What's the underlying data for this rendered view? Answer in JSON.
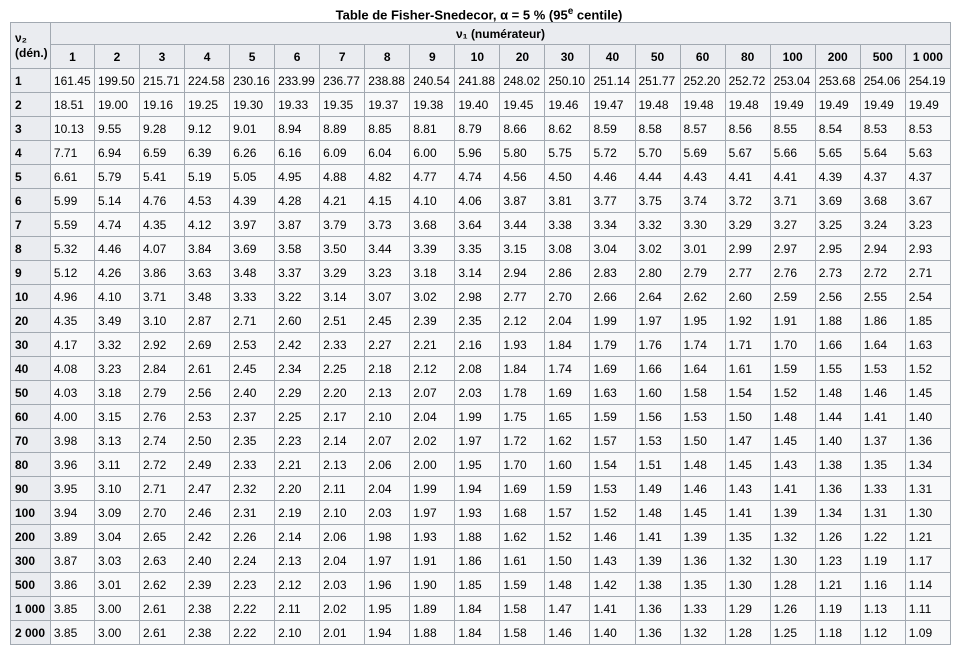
{
  "caption": {
    "prefix": "Table de Fisher-Snedecor, α = 5 % (95",
    "sup": "e",
    "suffix": " centile)"
  },
  "corner": {
    "line1": "ν₂",
    "line2": "(dén.)"
  },
  "numerator_header": "ν₁ (numérateur)",
  "columns": [
    "1",
    "2",
    "3",
    "4",
    "5",
    "6",
    "7",
    "8",
    "9",
    "10",
    "20",
    "30",
    "40",
    "50",
    "60",
    "80",
    "100",
    "200",
    "500",
    "1 000"
  ],
  "rows": [
    {
      "label": "1",
      "values": [
        "161.45",
        "199.50",
        "215.71",
        "224.58",
        "230.16",
        "233.99",
        "236.77",
        "238.88",
        "240.54",
        "241.88",
        "248.02",
        "250.10",
        "251.14",
        "251.77",
        "252.20",
        "252.72",
        "253.04",
        "253.68",
        "254.06",
        "254.19"
      ]
    },
    {
      "label": "2",
      "values": [
        "18.51",
        "19.00",
        "19.16",
        "19.25",
        "19.30",
        "19.33",
        "19.35",
        "19.37",
        "19.38",
        "19.40",
        "19.45",
        "19.46",
        "19.47",
        "19.48",
        "19.48",
        "19.48",
        "19.49",
        "19.49",
        "19.49",
        "19.49"
      ]
    },
    {
      "label": "3",
      "values": [
        "10.13",
        "9.55",
        "9.28",
        "9.12",
        "9.01",
        "8.94",
        "8.89",
        "8.85",
        "8.81",
        "8.79",
        "8.66",
        "8.62",
        "8.59",
        "8.58",
        "8.57",
        "8.56",
        "8.55",
        "8.54",
        "8.53",
        "8.53"
      ]
    },
    {
      "label": "4",
      "values": [
        "7.71",
        "6.94",
        "6.59",
        "6.39",
        "6.26",
        "6.16",
        "6.09",
        "6.04",
        "6.00",
        "5.96",
        "5.80",
        "5.75",
        "5.72",
        "5.70",
        "5.69",
        "5.67",
        "5.66",
        "5.65",
        "5.64",
        "5.63"
      ]
    },
    {
      "label": "5",
      "values": [
        "6.61",
        "5.79",
        "5.41",
        "5.19",
        "5.05",
        "4.95",
        "4.88",
        "4.82",
        "4.77",
        "4.74",
        "4.56",
        "4.50",
        "4.46",
        "4.44",
        "4.43",
        "4.41",
        "4.41",
        "4.39",
        "4.37",
        "4.37"
      ]
    },
    {
      "label": "6",
      "values": [
        "5.99",
        "5.14",
        "4.76",
        "4.53",
        "4.39",
        "4.28",
        "4.21",
        "4.15",
        "4.10",
        "4.06",
        "3.87",
        "3.81",
        "3.77",
        "3.75",
        "3.74",
        "3.72",
        "3.71",
        "3.69",
        "3.68",
        "3.67"
      ]
    },
    {
      "label": "7",
      "values": [
        "5.59",
        "4.74",
        "4.35",
        "4.12",
        "3.97",
        "3.87",
        "3.79",
        "3.73",
        "3.68",
        "3.64",
        "3.44",
        "3.38",
        "3.34",
        "3.32",
        "3.30",
        "3.29",
        "3.27",
        "3.25",
        "3.24",
        "3.23"
      ]
    },
    {
      "label": "8",
      "values": [
        "5.32",
        "4.46",
        "4.07",
        "3.84",
        "3.69",
        "3.58",
        "3.50",
        "3.44",
        "3.39",
        "3.35",
        "3.15",
        "3.08",
        "3.04",
        "3.02",
        "3.01",
        "2.99",
        "2.97",
        "2.95",
        "2.94",
        "2.93"
      ]
    },
    {
      "label": "9",
      "values": [
        "5.12",
        "4.26",
        "3.86",
        "3.63",
        "3.48",
        "3.37",
        "3.29",
        "3.23",
        "3.18",
        "3.14",
        "2.94",
        "2.86",
        "2.83",
        "2.80",
        "2.79",
        "2.77",
        "2.76",
        "2.73",
        "2.72",
        "2.71"
      ]
    },
    {
      "label": "10",
      "values": [
        "4.96",
        "4.10",
        "3.71",
        "3.48",
        "3.33",
        "3.22",
        "3.14",
        "3.07",
        "3.02",
        "2.98",
        "2.77",
        "2.70",
        "2.66",
        "2.64",
        "2.62",
        "2.60",
        "2.59",
        "2.56",
        "2.55",
        "2.54"
      ]
    },
    {
      "label": "20",
      "values": [
        "4.35",
        "3.49",
        "3.10",
        "2.87",
        "2.71",
        "2.60",
        "2.51",
        "2.45",
        "2.39",
        "2.35",
        "2.12",
        "2.04",
        "1.99",
        "1.97",
        "1.95",
        "1.92",
        "1.91",
        "1.88",
        "1.86",
        "1.85"
      ]
    },
    {
      "label": "30",
      "values": [
        "4.17",
        "3.32",
        "2.92",
        "2.69",
        "2.53",
        "2.42",
        "2.33",
        "2.27",
        "2.21",
        "2.16",
        "1.93",
        "1.84",
        "1.79",
        "1.76",
        "1.74",
        "1.71",
        "1.70",
        "1.66",
        "1.64",
        "1.63"
      ]
    },
    {
      "label": "40",
      "values": [
        "4.08",
        "3.23",
        "2.84",
        "2.61",
        "2.45",
        "2.34",
        "2.25",
        "2.18",
        "2.12",
        "2.08",
        "1.84",
        "1.74",
        "1.69",
        "1.66",
        "1.64",
        "1.61",
        "1.59",
        "1.55",
        "1.53",
        "1.52"
      ]
    },
    {
      "label": "50",
      "values": [
        "4.03",
        "3.18",
        "2.79",
        "2.56",
        "2.40",
        "2.29",
        "2.20",
        "2.13",
        "2.07",
        "2.03",
        "1.78",
        "1.69",
        "1.63",
        "1.60",
        "1.58",
        "1.54",
        "1.52",
        "1.48",
        "1.46",
        "1.45"
      ]
    },
    {
      "label": "60",
      "values": [
        "4.00",
        "3.15",
        "2.76",
        "2.53",
        "2.37",
        "2.25",
        "2.17",
        "2.10",
        "2.04",
        "1.99",
        "1.75",
        "1.65",
        "1.59",
        "1.56",
        "1.53",
        "1.50",
        "1.48",
        "1.44",
        "1.41",
        "1.40"
      ]
    },
    {
      "label": "70",
      "values": [
        "3.98",
        "3.13",
        "2.74",
        "2.50",
        "2.35",
        "2.23",
        "2.14",
        "2.07",
        "2.02",
        "1.97",
        "1.72",
        "1.62",
        "1.57",
        "1.53",
        "1.50",
        "1.47",
        "1.45",
        "1.40",
        "1.37",
        "1.36"
      ]
    },
    {
      "label": "80",
      "values": [
        "3.96",
        "3.11",
        "2.72",
        "2.49",
        "2.33",
        "2.21",
        "2.13",
        "2.06",
        "2.00",
        "1.95",
        "1.70",
        "1.60",
        "1.54",
        "1.51",
        "1.48",
        "1.45",
        "1.43",
        "1.38",
        "1.35",
        "1.34"
      ]
    },
    {
      "label": "90",
      "values": [
        "3.95",
        "3.10",
        "2.71",
        "2.47",
        "2.32",
        "2.20",
        "2.11",
        "2.04",
        "1.99",
        "1.94",
        "1.69",
        "1.59",
        "1.53",
        "1.49",
        "1.46",
        "1.43",
        "1.41",
        "1.36",
        "1.33",
        "1.31"
      ]
    },
    {
      "label": "100",
      "values": [
        "3.94",
        "3.09",
        "2.70",
        "2.46",
        "2.31",
        "2.19",
        "2.10",
        "2.03",
        "1.97",
        "1.93",
        "1.68",
        "1.57",
        "1.52",
        "1.48",
        "1.45",
        "1.41",
        "1.39",
        "1.34",
        "1.31",
        "1.30"
      ]
    },
    {
      "label": "200",
      "values": [
        "3.89",
        "3.04",
        "2.65",
        "2.42",
        "2.26",
        "2.14",
        "2.06",
        "1.98",
        "1.93",
        "1.88",
        "1.62",
        "1.52",
        "1.46",
        "1.41",
        "1.39",
        "1.35",
        "1.32",
        "1.26",
        "1.22",
        "1.21"
      ]
    },
    {
      "label": "300",
      "values": [
        "3.87",
        "3.03",
        "2.63",
        "2.40",
        "2.24",
        "2.13",
        "2.04",
        "1.97",
        "1.91",
        "1.86",
        "1.61",
        "1.50",
        "1.43",
        "1.39",
        "1.36",
        "1.32",
        "1.30",
        "1.23",
        "1.19",
        "1.17"
      ]
    },
    {
      "label": "500",
      "values": [
        "3.86",
        "3.01",
        "2.62",
        "2.39",
        "2.23",
        "2.12",
        "2.03",
        "1.96",
        "1.90",
        "1.85",
        "1.59",
        "1.48",
        "1.42",
        "1.38",
        "1.35",
        "1.30",
        "1.28",
        "1.21",
        "1.16",
        "1.14"
      ]
    },
    {
      "label": "1 000",
      "values": [
        "3.85",
        "3.00",
        "2.61",
        "2.38",
        "2.22",
        "2.11",
        "2.02",
        "1.95",
        "1.89",
        "1.84",
        "1.58",
        "1.47",
        "1.41",
        "1.36",
        "1.33",
        "1.29",
        "1.26",
        "1.19",
        "1.13",
        "1.11"
      ]
    },
    {
      "label": "2 000",
      "values": [
        "3.85",
        "3.00",
        "2.61",
        "2.38",
        "2.22",
        "2.10",
        "2.01",
        "1.94",
        "1.88",
        "1.84",
        "1.58",
        "1.46",
        "1.40",
        "1.36",
        "1.32",
        "1.28",
        "1.25",
        "1.18",
        "1.12",
        "1.09"
      ]
    }
  ],
  "colors": {
    "header_bg": "#eaecf0",
    "cell_bg": "#f8f9fa",
    "border": "#a2a9b1"
  }
}
